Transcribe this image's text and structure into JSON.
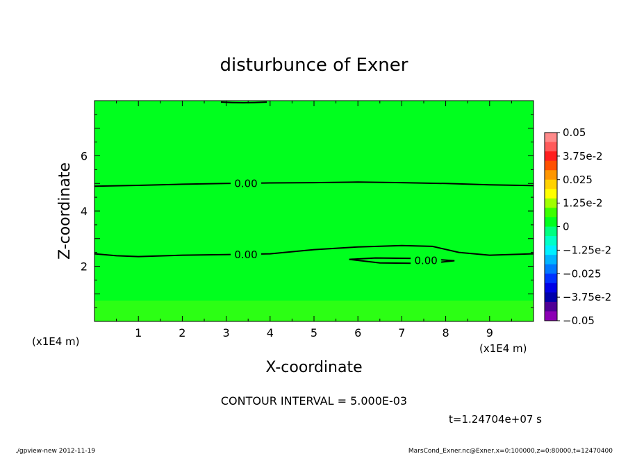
{
  "chart_data": {
    "type": "contour",
    "title": "disturbunce of Exner",
    "xlabel": "X-coordinate",
    "ylabel": "Z-coordinate",
    "x_unit": "(x1E4 m)",
    "y_unit": "(x1E4 m)",
    "xlim": [
      0,
      10
    ],
    "ylim": [
      0,
      8
    ],
    "x_ticks": [
      1,
      2,
      3,
      4,
      5,
      6,
      7,
      8,
      9
    ],
    "y_ticks": [
      2,
      4,
      6
    ],
    "contour_interval_text": "CONTOUR INTERVAL = 5.000E-03",
    "time_text": "t=1.24704e+07 s",
    "fill_color": "#00ff1e",
    "contour_lines": [
      {
        "label": "0.00",
        "points": [
          [
            0,
            4.9
          ],
          [
            1,
            4.93
          ],
          [
            2,
            4.97
          ],
          [
            3,
            5.0
          ],
          [
            4,
            5.02
          ],
          [
            5,
            5.03
          ],
          [
            6,
            5.05
          ],
          [
            7,
            5.03
          ],
          [
            8,
            5.0
          ],
          [
            9,
            4.95
          ],
          [
            10,
            4.92
          ]
        ]
      },
      {
        "label": "0.00",
        "points": [
          [
            0,
            2.45
          ],
          [
            0.5,
            2.38
          ],
          [
            1,
            2.35
          ],
          [
            2,
            2.4
          ],
          [
            3,
            2.42
          ],
          [
            4,
            2.45
          ],
          [
            5,
            2.6
          ],
          [
            6,
            2.7
          ],
          [
            7,
            2.75
          ],
          [
            7.7,
            2.72
          ],
          [
            8.3,
            2.5
          ],
          [
            9,
            2.4
          ],
          [
            10,
            2.45
          ]
        ]
      },
      {
        "label": "0.00",
        "points": [
          [
            5.8,
            2.25
          ],
          [
            6.4,
            2.3
          ],
          [
            7.5,
            2.28
          ],
          [
            8.2,
            2.2
          ],
          [
            7.6,
            2.1
          ],
          [
            6.5,
            2.12
          ],
          [
            5.8,
            2.25
          ]
        ]
      }
    ],
    "colorbar": {
      "labels": [
        "0.05",
        "3.75e-2",
        "0.025",
        "1.25e-2",
        "0",
        "−1.25e-2",
        "−0.025",
        "−3.75e-2",
        "−0.05"
      ],
      "colors": [
        "#ff8a8a",
        "#ff5a5a",
        "#ff1e1e",
        "#ff5000",
        "#ff9600",
        "#ffd200",
        "#ffff00",
        "#a0ff00",
        "#3cff00",
        "#00ff1e",
        "#00ff80",
        "#00ffc8",
        "#00f0ff",
        "#00b4ff",
        "#0078ff",
        "#0032ff",
        "#0000e6",
        "#0000aa",
        "#500096",
        "#8c00b4"
      ]
    }
  },
  "footer": {
    "left": "./gpview-new   2012-11-19",
    "right": "MarsCond_Exner.nc@Exner,x=0:100000,z=0:80000,t=12470400"
  }
}
